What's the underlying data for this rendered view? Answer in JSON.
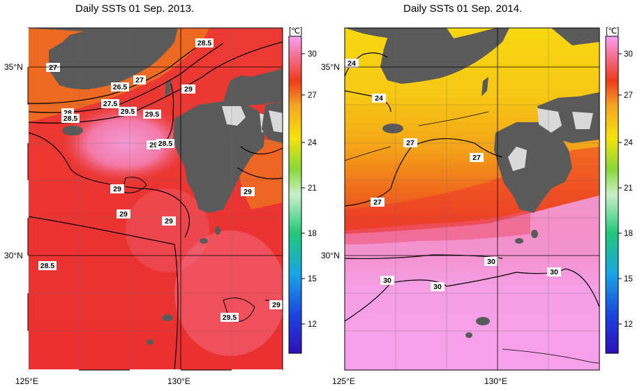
{
  "panels": [
    {
      "title": "Daily SSTs 01 Sep. 2013.",
      "contour_labels": [
        "28.5",
        "27",
        "26.5",
        "27",
        "27.5",
        "29.5",
        "28",
        "28.5",
        "29",
        "29.5",
        "29",
        "28.5",
        "29",
        "29",
        "29",
        "28.5",
        "29",
        "29.5",
        "29"
      ],
      "colorbar": {
        "unit": "[℃]",
        "ticks": [
          "30",
          "27",
          "24",
          "21",
          "18",
          "15",
          "12"
        ]
      }
    },
    {
      "title": "Daily SSTs 01 Sep. 2014.",
      "contour_labels": [
        "24",
        "24",
        "27",
        "27",
        "27",
        "30",
        "30",
        "30",
        "30"
      ],
      "colorbar": {
        "unit": "[℃]",
        "ticks": [
          "30",
          "27",
          "24",
          "21",
          "18",
          "15",
          "12"
        ]
      }
    }
  ],
  "axes": {
    "lat_labels": [
      "35°N",
      "30°N"
    ],
    "lon_labels": [
      "125°E",
      "130°E"
    ]
  },
  "colors": {
    "land": "#5a5a5a",
    "lake_land": "#d9d9d9",
    "sst_26": "#f28a1e",
    "sst_27": "#ee3b1e",
    "sst_28": "#ea2f3a",
    "sst_29": "#f35a5a",
    "sst_30": "#f5a6f0",
    "sst_24": "#f6d00a"
  }
}
